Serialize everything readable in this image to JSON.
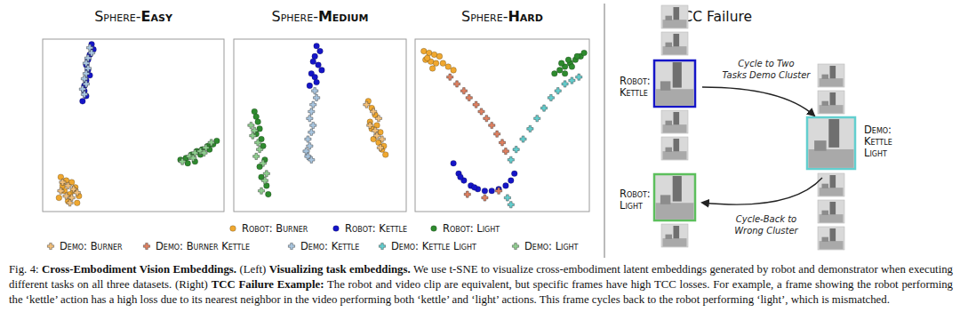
{
  "chart_data": [
    {
      "type": "scatter",
      "title": "Sphere-Easy",
      "xlim": [
        0,
        100
      ],
      "ylim": [
        0,
        100
      ],
      "tick_labels": false,
      "series": [
        {
          "name": "Robot: Burner",
          "x": [
            10,
            13,
            16,
            18,
            12,
            15,
            20,
            9,
            14,
            17,
            19,
            11
          ],
          "values": [
            20,
            18,
            17,
            14,
            12,
            10,
            9,
            8,
            6,
            12,
            5,
            15
          ]
        },
        {
          "name": "Robot: Kettle",
          "x": [
            27,
            28,
            26,
            25,
            24,
            25,
            26,
            24,
            23,
            23,
            24,
            22
          ],
          "values": [
            97,
            94,
            91,
            88,
            85,
            82,
            79,
            76,
            73,
            70,
            67,
            64
          ]
        },
        {
          "name": "Robot: Light",
          "x": [
            76,
            79,
            82,
            85,
            88,
            91,
            94,
            96,
            80,
            87,
            92,
            84
          ],
          "values": [
            30,
            31,
            33,
            35,
            36,
            38,
            39,
            41,
            28,
            33,
            36,
            29
          ]
        },
        {
          "name": "Demo: Burner",
          "x": [
            11,
            14,
            17,
            13,
            16,
            19,
            10,
            15
          ],
          "values": [
            17,
            15,
            13,
            9,
            8,
            11,
            12,
            5
          ]
        },
        {
          "name": "Demo: Kettle",
          "x": [
            26,
            27,
            25,
            24,
            25,
            24,
            23,
            24,
            22,
            23
          ],
          "values": [
            95,
            92,
            89,
            86,
            83,
            80,
            77,
            74,
            71,
            68
          ]
        },
        {
          "name": "Demo: Light",
          "x": [
            77,
            81,
            84,
            87,
            90,
            93,
            83,
            89
          ],
          "values": [
            29,
            32,
            34,
            35,
            37,
            40,
            31,
            34
          ]
        }
      ]
    },
    {
      "type": "scatter",
      "title": "Sphere-Medium",
      "xlim": [
        0,
        100
      ],
      "ylim": [
        0,
        100
      ],
      "tick_labels": false,
      "series": [
        {
          "name": "Robot: Burner",
          "x": [
            78,
            80,
            82,
            79,
            83,
            85,
            81,
            84,
            86,
            88,
            80,
            87
          ],
          "values": [
            64,
            60,
            56,
            52,
            50,
            46,
            42,
            40,
            36,
            33,
            48,
            38
          ]
        },
        {
          "name": "Robot: Kettle",
          "x": [
            48,
            50,
            47,
            46,
            49,
            51,
            45,
            47,
            48,
            44
          ],
          "values": [
            96,
            93,
            90,
            87,
            85,
            82,
            80,
            78,
            75,
            73
          ]
        },
        {
          "name": "Robot: Light",
          "x": [
            12,
            13,
            14,
            15,
            13,
            16,
            17,
            18,
            15,
            16,
            19,
            20
          ],
          "values": [
            58,
            55,
            52,
            48,
            45,
            42,
            38,
            30,
            26,
            20,
            15,
            10
          ]
        },
        {
          "name": "Demo: Burner",
          "x": [
            77,
            81,
            84,
            82,
            86,
            79,
            85,
            83
          ],
          "values": [
            62,
            58,
            54,
            47,
            42,
            50,
            37,
            44
          ]
        },
        {
          "name": "Demo: Kettle",
          "x": [
            47,
            48,
            46,
            45,
            44,
            46,
            45,
            43,
            44,
            42,
            43,
            45
          ],
          "values": [
            70,
            66,
            62,
            58,
            54,
            50,
            46,
            42,
            38,
            35,
            32,
            30
          ]
        },
        {
          "name": "Demo: Light",
          "x": [
            10,
            12,
            11,
            14,
            15,
            13,
            17,
            19,
            18,
            16
          ],
          "values": [
            50,
            47,
            44,
            40,
            36,
            32,
            28,
            22,
            18,
            12
          ]
        }
      ]
    },
    {
      "type": "scatter",
      "title": "Sphere-Hard",
      "xlim": [
        0,
        100
      ],
      "ylim": [
        0,
        100
      ],
      "tick_labels": false,
      "series": [
        {
          "name": "Robot: Burner",
          "x": [
            5,
            8,
            11,
            14,
            6,
            9,
            12,
            16,
            19,
            22,
            10,
            7
          ],
          "values": [
            93,
            92,
            91,
            90,
            88,
            87,
            86,
            86,
            84,
            82,
            83,
            89
          ]
        },
        {
          "name": "Robot: Kettle",
          "x": [
            22,
            25,
            28,
            32,
            36,
            40,
            44,
            48,
            52,
            55,
            57,
            26,
            34
          ],
          "values": [
            28,
            22,
            18,
            15,
            13,
            12,
            12,
            13,
            15,
            18,
            22,
            20,
            14
          ]
        },
        {
          "name": "Robot: Light",
          "x": [
            80,
            83,
            86,
            89,
            92,
            95,
            84,
            88,
            93,
            97,
            90,
            86
          ],
          "values": [
            80,
            82,
            84,
            86,
            88,
            90,
            86,
            88,
            90,
            92,
            84,
            80
          ]
        },
        {
          "name": "Demo: Burner Kettle",
          "x": [
            20,
            24,
            28,
            31,
            35,
            38,
            41,
            44,
            47,
            50,
            52,
            30,
            40,
            48
          ],
          "values": [
            78,
            74,
            70,
            66,
            62,
            58,
            54,
            50,
            45,
            40,
            35,
            10,
            8,
            12
          ]
        },
        {
          "name": "Demo: Kettle Light",
          "x": [
            55,
            58,
            62,
            66,
            70,
            74,
            78,
            82,
            86,
            90,
            94,
            53,
            55
          ],
          "values": [
            30,
            36,
            42,
            48,
            54,
            60,
            66,
            70,
            74,
            76,
            78,
            8,
            4
          ]
        }
      ]
    }
  ],
  "legend": {
    "items": [
      {
        "name": "Robot: Burner",
        "color": "#f0a830",
        "marker": "circle"
      },
      {
        "name": "Robot: Kettle",
        "color": "#1515c8",
        "marker": "circle"
      },
      {
        "name": "Robot: Light",
        "color": "#2e8b2e",
        "marker": "circle"
      },
      {
        "name": "Demo: Burner",
        "color": "#f3c07a",
        "marker": "plus"
      },
      {
        "name": "Demo: Burner Kettle",
        "color": "#e08060",
        "marker": "plus"
      },
      {
        "name": "Demo: Kettle",
        "color": "#a9c6e0",
        "marker": "plus"
      },
      {
        "name": "Demo: Kettle Light",
        "color": "#62cfcf",
        "marker": "plus"
      },
      {
        "name": "Demo: Light",
        "color": "#8fcf8f",
        "marker": "plus"
      }
    ]
  },
  "diagram": {
    "title": "TCC Failure",
    "nodes": [
      {
        "label": "Robot: Kettle",
        "color": "#1515c8"
      },
      {
        "label": "Demo: Kettle Light",
        "color": "#62cfcf"
      },
      {
        "label": "Robot: Light",
        "color": "#5cbf5c"
      }
    ],
    "arrows": [
      {
        "lines": [
          "Cycle to Two",
          "Tasks Demo Cluster"
        ]
      },
      {
        "lines": [
          "Cycle-Back to",
          "Wrong Cluster"
        ]
      }
    ]
  },
  "caption": {
    "segments": [
      {
        "text": "Fig. 4: ",
        "bold": false
      },
      {
        "text": "Cross-Embodiment Vision Embeddings.",
        "bold": true
      },
      {
        "text": " (Left) ",
        "bold": false
      },
      {
        "text": "Visualizing task embeddings.",
        "bold": true
      },
      {
        "text": " We use t-SNE to visualize cross-embodiment latent embeddings generated by robot and demonstrator when executing different tasks on all three datasets. (Right) ",
        "bold": false
      },
      {
        "text": "TCC Failure Example:",
        "bold": true
      },
      {
        "text": " The robot and video clip are equivalent, but specific frames have high TCC losses. For example, a frame showing the robot performing the ‘kettle’ action has a high loss due to its nearest neighbor in the video performing both ‘kettle’ and ‘light’ actions. This frame cycles back to the robot performing ‘light’, which is mismatched.",
        "bold": false
      }
    ]
  }
}
